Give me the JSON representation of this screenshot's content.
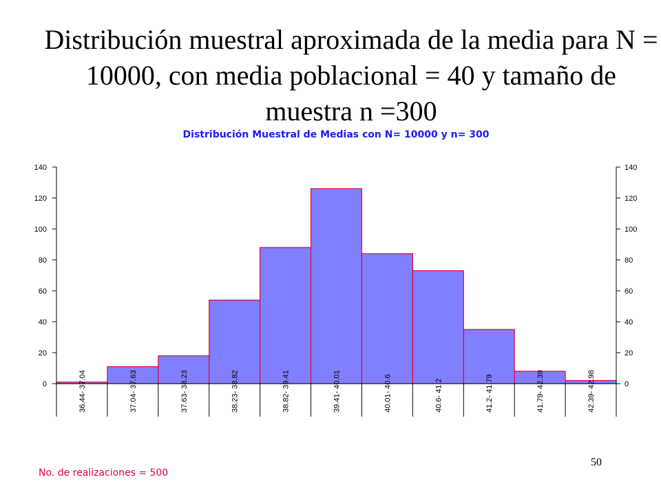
{
  "slide": {
    "title": "Distribución muestral aproximada de la media para N = 10000, con media poblacional = 40 y tamaño de muestra n =300",
    "footnote": "No. de realizaciones = 500",
    "page_number": "50"
  },
  "colors": {
    "bar_fill": "#8080ff",
    "bar_stroke": "#e0003c",
    "chart_title": "#1a1aff",
    "footnote": "#e0003c"
  },
  "chart_data": {
    "type": "bar",
    "title": "Distribución Muestral de Medias con N= 10000 y n= 300",
    "xlabel": "",
    "ylabel": "",
    "categories": [
      "36.44- 37.04",
      "37.04- 37.63",
      "37.63- 38.23",
      "38.23- 38.82",
      "38.82- 39.41",
      "39.41- 40.01",
      "40.01- 40.6",
      "40.6- 41.2",
      "41.2- 41.79",
      "41.79- 42.39",
      "42.39- 42.98"
    ],
    "values": [
      1,
      11,
      18,
      54,
      88,
      126,
      84,
      73,
      35,
      8,
      2
    ],
    "ylim": [
      0,
      140
    ],
    "yticks": [
      0,
      20,
      40,
      60,
      80,
      100,
      120,
      140
    ],
    "secondary_y_axis": true,
    "grid": false,
    "legend": "none"
  }
}
